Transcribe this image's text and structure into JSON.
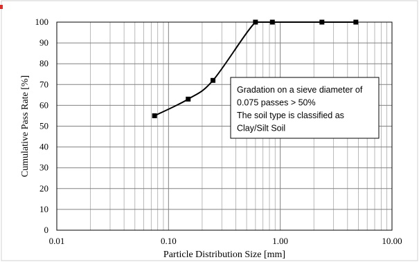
{
  "chart_data": {
    "type": "line",
    "x_scale": "log",
    "xlim": [
      0.01,
      10
    ],
    "ylim": [
      0,
      100
    ],
    "x_ticks": [
      0.01,
      0.1,
      1,
      10
    ],
    "x_tick_labels": [
      "0.01",
      "0.10",
      "1.00",
      "10.00"
    ],
    "y_ticks": [
      0,
      10,
      20,
      30,
      40,
      50,
      60,
      70,
      80,
      90,
      100
    ],
    "y_tick_labels": [
      "0",
      "10",
      "20",
      "30",
      "40",
      "50",
      "60",
      "70",
      "80",
      "90",
      "100"
    ],
    "xlabel": "Particle Distribution Size [mm]",
    "ylabel": "Cumulative Pass Rate [%]",
    "grid": "on (major and minor)",
    "series": [
      {
        "x": [
          0.075,
          0.15,
          0.25,
          0.6,
          0.85,
          2.36,
          4.75
        ],
        "y": [
          55,
          63,
          72,
          100,
          100,
          100,
          100
        ],
        "color": "#000000",
        "marker": "square"
      }
    ],
    "annotations": [
      {
        "lines": [
          "Gradation on a sieve diameter of",
          "0.075 passes > 50%",
          "The soil type is classified as",
          "Clay/Silt Soil"
        ]
      }
    ]
  }
}
